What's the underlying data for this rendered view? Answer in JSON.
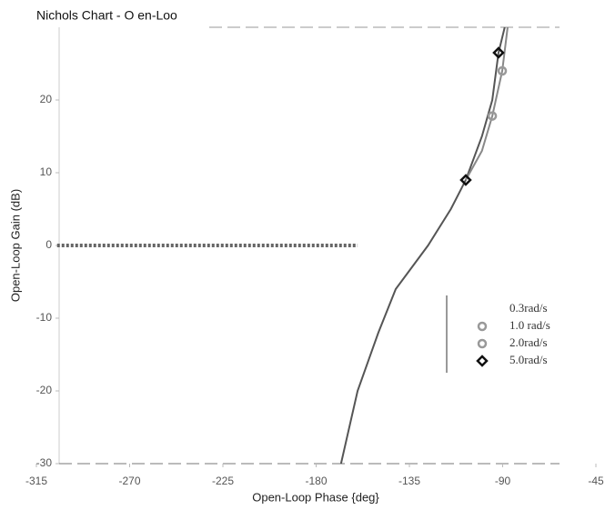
{
  "chart_data": {
    "type": "line",
    "title": "Nichols Chart - O en-Loo",
    "xlabel": "Open-Loop Phase {deg}",
    "ylabel": "Open-Loop Gain (dB)",
    "xlim": [
      -315,
      -45
    ],
    "xticks": [
      -315,
      -270,
      -225,
      -180,
      -135,
      -90,
      -45
    ],
    "ylim": [
      -30,
      30
    ],
    "yticks": [
      -30,
      -20,
      -10,
      0,
      10,
      20
    ],
    "zero_line": true,
    "curves": [
      {
        "color": "#555555",
        "x": [
          -168,
          -160,
          -150,
          -141.6,
          -126,
          -115,
          -107.8,
          -100,
          -95,
          -92,
          -89
        ],
        "values": [
          -30,
          -20,
          -12,
          -6,
          0,
          5,
          9,
          15,
          20,
          26.5,
          30
        ]
      },
      {
        "color": "#888888",
        "x": [
          -107.8,
          -100,
          -95,
          -90.2,
          -87.6
        ],
        "values": [
          9,
          13,
          17.8,
          24,
          30
        ]
      }
    ],
    "series": [
      {
        "name": "0.3rad/s",
        "color": "#222222",
        "marker": "none",
        "x": [],
        "values": []
      },
      {
        "name": "1.0 rad/s",
        "color": "#999999",
        "marker": "circle",
        "x": [
          -95
        ],
        "values": [
          17.8
        ]
      },
      {
        "name": "2.0rad/s",
        "color": "#999999",
        "marker": "circle",
        "x": [
          -90.2
        ],
        "values": [
          24
        ]
      },
      {
        "name": "5.0rad/s",
        "color": "#111111",
        "marker": "diamond",
        "x": [
          -107.8,
          -92
        ],
        "values": [
          9,
          26.5
        ]
      }
    ]
  }
}
